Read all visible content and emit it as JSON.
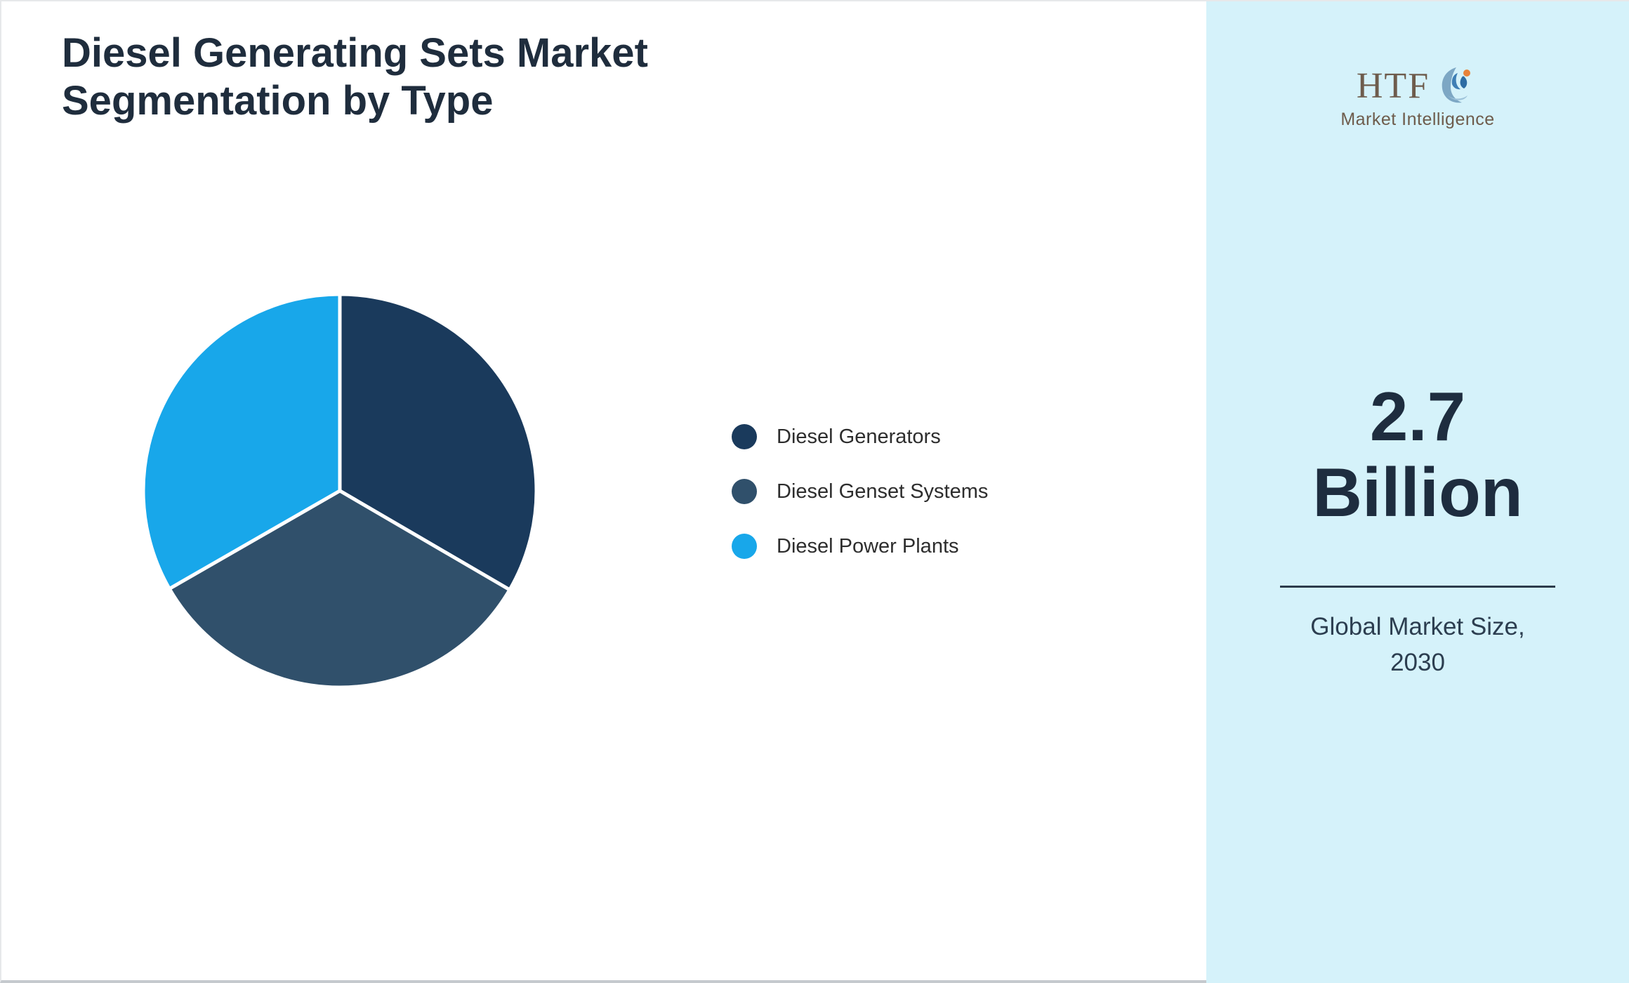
{
  "page": {
    "title_line1": "Diesel Generating Sets Market",
    "title_line2": "Segmentation by Type"
  },
  "chart_data": {
    "type": "pie",
    "title": "Diesel Generating Sets Market Segmentation by Type",
    "labels": [
      "Diesel Generators",
      "Diesel Genset Systems",
      "Diesel Power Plants"
    ],
    "values": [
      33.4,
      33.3,
      33.3
    ],
    "colors": [
      "#1a3a5c",
      "#30506b",
      "#18a7ea"
    ],
    "slice_border_color": "#ffffff",
    "legend_position": "right",
    "start_angle_deg": 0,
    "direction": "clockwise"
  },
  "sidebar": {
    "background": "#d5f2fa",
    "logo": {
      "text": "HTF",
      "subtext": "Market Intelligence",
      "icon": "dolphin-swoosh-icon"
    },
    "market_size_value": "2.7",
    "market_size_unit": "Billion",
    "caption_line1": "Global Market Size,",
    "caption_line2": "2030"
  }
}
